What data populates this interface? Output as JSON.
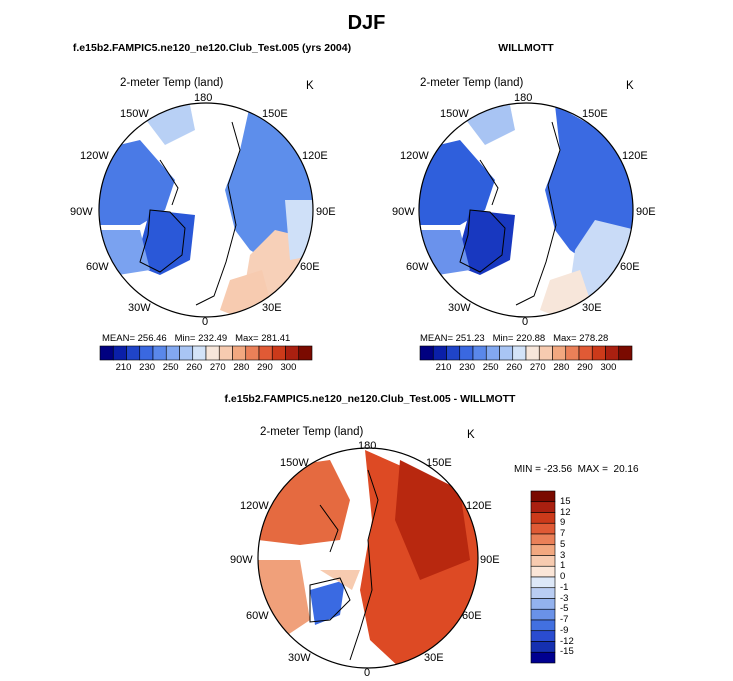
{
  "page": {
    "title": "DJF"
  },
  "chart_data": [
    {
      "type": "polar-map",
      "title": "f.e15b2.FAMPIC5.ne120_ne120.Club_Test.005 (yrs 2004)",
      "variable": "2-meter Temp (land)",
      "units": "K",
      "projection": "north-polar-stereographic",
      "longitude_labels": [
        "180",
        "150E",
        "120E",
        "90E",
        "60E",
        "30E",
        "0",
        "30W",
        "60W",
        "90W",
        "120W",
        "150W"
      ],
      "stats": {
        "mean_label": "MEAN=",
        "mean": "256.46",
        "min_label": "Min=",
        "min": "232.49",
        "max_label": "Max=",
        "max": "281.41"
      },
      "colorbar": {
        "orientation": "horizontal",
        "ticks": [
          "210",
          "230",
          "250",
          "260",
          "270",
          "280",
          "290",
          "300"
        ],
        "colors": [
          "#000080",
          "#0a1fa8",
          "#1f44c8",
          "#3a68e0",
          "#5a88ea",
          "#82a8f0",
          "#a9c5f4",
          "#d3e3f8",
          "#f7e6da",
          "#f7cbb0",
          "#f2a880",
          "#ea8058",
          "#e05a35",
          "#cc3a1a",
          "#aa2010",
          "#7a0a00"
        ]
      }
    },
    {
      "type": "polar-map",
      "title": "WILLMOTT",
      "variable": "2-meter Temp (land)",
      "units": "K",
      "projection": "north-polar-stereographic",
      "longitude_labels": [
        "180",
        "150E",
        "120E",
        "90E",
        "60E",
        "30E",
        "0",
        "30W",
        "60W",
        "90W",
        "120W",
        "150W"
      ],
      "stats": {
        "mean_label": "MEAN=",
        "mean": "251.23",
        "min_label": "Min=",
        "min": "220.88",
        "max_label": "Max=",
        "max": "278.28"
      },
      "colorbar": {
        "orientation": "horizontal",
        "ticks": [
          "210",
          "230",
          "250",
          "260",
          "270",
          "280",
          "290",
          "300"
        ],
        "colors": [
          "#000080",
          "#0a1fa8",
          "#1f44c8",
          "#3a68e0",
          "#5a88ea",
          "#82a8f0",
          "#a9c5f4",
          "#d3e3f8",
          "#f7e6da",
          "#f7cbb0",
          "#f2a880",
          "#ea8058",
          "#e05a35",
          "#cc3a1a",
          "#aa2010",
          "#7a0a00"
        ]
      }
    },
    {
      "type": "polar-map",
      "title": "f.e15b2.FAMPIC5.ne120_ne120.Club_Test.005 - WILLMOTT",
      "variable": "2-meter Temp (land)",
      "units": "K",
      "projection": "north-polar-stereographic",
      "longitude_labels": [
        "180",
        "150E",
        "120E",
        "90E",
        "60E",
        "30E",
        "0",
        "30W",
        "60W",
        "90W",
        "120W",
        "150W"
      ],
      "stats": {
        "min_label": "MIN = ",
        "min": "-23.56",
        "max_label": "MAX = ",
        "max": "20.16"
      },
      "colorbar": {
        "orientation": "vertical",
        "ticks": [
          "15",
          "12",
          "9",
          "7",
          "5",
          "3",
          "1",
          "0",
          "-1",
          "-3",
          "-5",
          "-7",
          "-9",
          "-12",
          "-15"
        ],
        "colors": [
          "#7a0a00",
          "#aa2010",
          "#cc3a1a",
          "#e05a35",
          "#ea8058",
          "#f2a880",
          "#f7cbb0",
          "#fbe6d8",
          "#dde8f8",
          "#b9cdf3",
          "#93b2ee",
          "#6a92e8",
          "#4270e0",
          "#2a4cd0",
          "#1530b0",
          "#000090"
        ]
      }
    }
  ]
}
